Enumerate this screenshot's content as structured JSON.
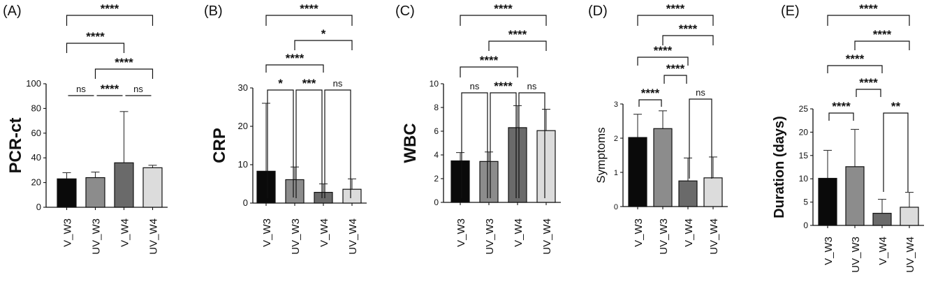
{
  "colors": {
    "v_w3": "#0a0a0a",
    "uv_w3": "#8c8c8c",
    "v_w4": "#6a6a6a",
    "uv_w4": "#dcdcdc",
    "axis": "#111111"
  },
  "chart_data": [
    {
      "type": "bar",
      "panel_label": "(A)",
      "ylabel": "PCR-ct",
      "categories": [
        "V_W3",
        "UV_W3",
        "V_W4",
        "UV_W4"
      ],
      "values": [
        23,
        24,
        36,
        32
      ],
      "error_upper": [
        28,
        28.5,
        77.5,
        34
      ],
      "ylim": [
        0,
        100
      ],
      "yticks": [
        "0",
        "20",
        "40",
        "60",
        "80",
        "100"
      ],
      "brackets": [
        {
          "i": 0,
          "j": 1,
          "label": "ns"
        },
        {
          "i": 1,
          "j": 2,
          "label": "****"
        },
        {
          "i": 2,
          "j": 3,
          "label": "ns"
        },
        {
          "i": 1,
          "j": 3,
          "label": "****"
        },
        {
          "i": 0,
          "j": 2,
          "label": "****"
        },
        {
          "i": 0,
          "j": 3,
          "label": "****"
        }
      ]
    },
    {
      "type": "bar",
      "panel_label": "(B)",
      "ylabel": "CRP",
      "categories": [
        "V_W3",
        "UV_W3",
        "V_W4",
        "UV_W4"
      ],
      "values": [
        8.3,
        6.1,
        2.8,
        3.6
      ],
      "error_upper": [
        26,
        9.4,
        5,
        6.3
      ],
      "ylim": [
        0,
        30
      ],
      "yticks": [
        "0",
        "10",
        "20",
        "30"
      ],
      "brackets": [
        {
          "i": 0,
          "j": 1,
          "label": "*"
        },
        {
          "i": 1,
          "j": 2,
          "label": "***"
        },
        {
          "i": 2,
          "j": 3,
          "label": "ns"
        },
        {
          "i": 0,
          "j": 2,
          "label": "****"
        },
        {
          "i": 1,
          "j": 3,
          "label": "*"
        },
        {
          "i": 0,
          "j": 3,
          "label": "****"
        }
      ]
    },
    {
      "type": "bar",
      "panel_label": "(C)",
      "ylabel": "WBC",
      "categories": [
        "V_W3",
        "UV_W3",
        "V_W4",
        "UV_W4"
      ],
      "values": [
        3.5,
        3.45,
        6.3,
        6.05
      ],
      "error_upper": [
        4.2,
        4.25,
        8.15,
        7.85
      ],
      "ylim": [
        0,
        10
      ],
      "yticks": [
        "0",
        "2",
        "4",
        "6",
        "8",
        "10"
      ],
      "brackets": [
        {
          "i": 0,
          "j": 1,
          "label": "ns"
        },
        {
          "i": 1,
          "j": 2,
          "label": "****"
        },
        {
          "i": 2,
          "j": 3,
          "label": "ns"
        },
        {
          "i": 0,
          "j": 2,
          "label": "****"
        },
        {
          "i": 1,
          "j": 3,
          "label": "****"
        },
        {
          "i": 0,
          "j": 3,
          "label": "****"
        }
      ]
    },
    {
      "type": "bar",
      "panel_label": "(D)",
      "ylabel": "Symptoms",
      "categories": [
        "V_W3",
        "UV_W3",
        "V_W4",
        "UV_W4"
      ],
      "values": [
        2.02,
        2.28,
        0.75,
        0.84
      ],
      "error_upper": [
        2.7,
        2.8,
        1.42,
        1.45
      ],
      "ylim": [
        0,
        3
      ],
      "yticks": [
        "0",
        "1",
        "2",
        "3"
      ],
      "brackets": [
        {
          "i": 0,
          "j": 1,
          "label": "****"
        },
        {
          "i": 2,
          "j": 3,
          "label": "ns"
        },
        {
          "i": 1,
          "j": 2,
          "label": "****"
        },
        {
          "i": 0,
          "j": 2,
          "label": "****"
        },
        {
          "i": 1,
          "j": 3,
          "label": "****"
        },
        {
          "i": 0,
          "j": 3,
          "label": "****"
        }
      ]
    },
    {
      "type": "bar",
      "panel_label": "(E)",
      "ylabel": "Duration (days)",
      "categories": [
        "V_W3",
        "UV_W3",
        "V_W4",
        "UV_W4"
      ],
      "values": [
        10.1,
        12.6,
        2.6,
        3.9
      ],
      "error_upper": [
        16.1,
        20.6,
        5.6,
        7.1
      ],
      "ylim": [
        0,
        25
      ],
      "yticks": [
        "0",
        "5",
        "10",
        "15",
        "20",
        "25"
      ],
      "brackets": [
        {
          "i": 0,
          "j": 1,
          "label": "****"
        },
        {
          "i": 2,
          "j": 3,
          "label": "**"
        },
        {
          "i": 1,
          "j": 2,
          "label": "****"
        },
        {
          "i": 0,
          "j": 2,
          "label": "****"
        },
        {
          "i": 1,
          "j": 3,
          "label": "****"
        },
        {
          "i": 0,
          "j": 3,
          "label": "****"
        }
      ]
    }
  ]
}
